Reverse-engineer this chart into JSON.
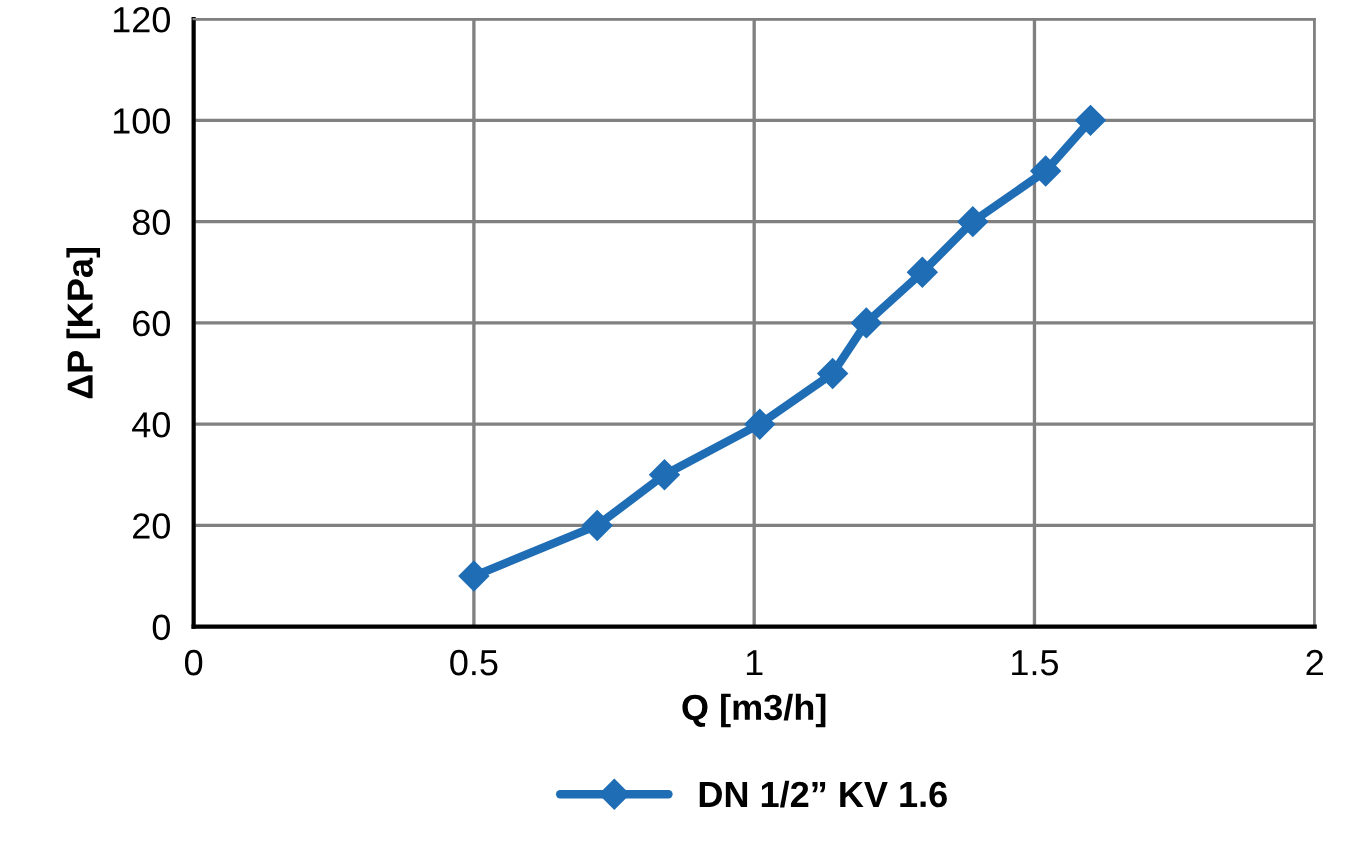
{
  "chart_data": {
    "type": "line",
    "xlabel": "Q [m3/h]",
    "ylabel": "ΔP [KPa]",
    "x": [
      0.5,
      0.72,
      0.84,
      1.01,
      1.14,
      1.2,
      1.3,
      1.39,
      1.52,
      1.6
    ],
    "series": [
      {
        "name": "DN 1/2” KV 1.6",
        "color": "#1f6db5",
        "values": [
          10,
          20,
          30,
          40,
          50,
          60,
          70,
          80,
          90,
          100
        ]
      }
    ],
    "xlim": [
      0,
      2
    ],
    "xticks": [
      0,
      0.5,
      1,
      1.5,
      2
    ],
    "ylim": [
      0,
      120
    ],
    "yticks": [
      0,
      20,
      40,
      60,
      80,
      100,
      120
    ],
    "grid": true,
    "legend": "bottom",
    "marker": "diamond",
    "line_style": "solid"
  }
}
